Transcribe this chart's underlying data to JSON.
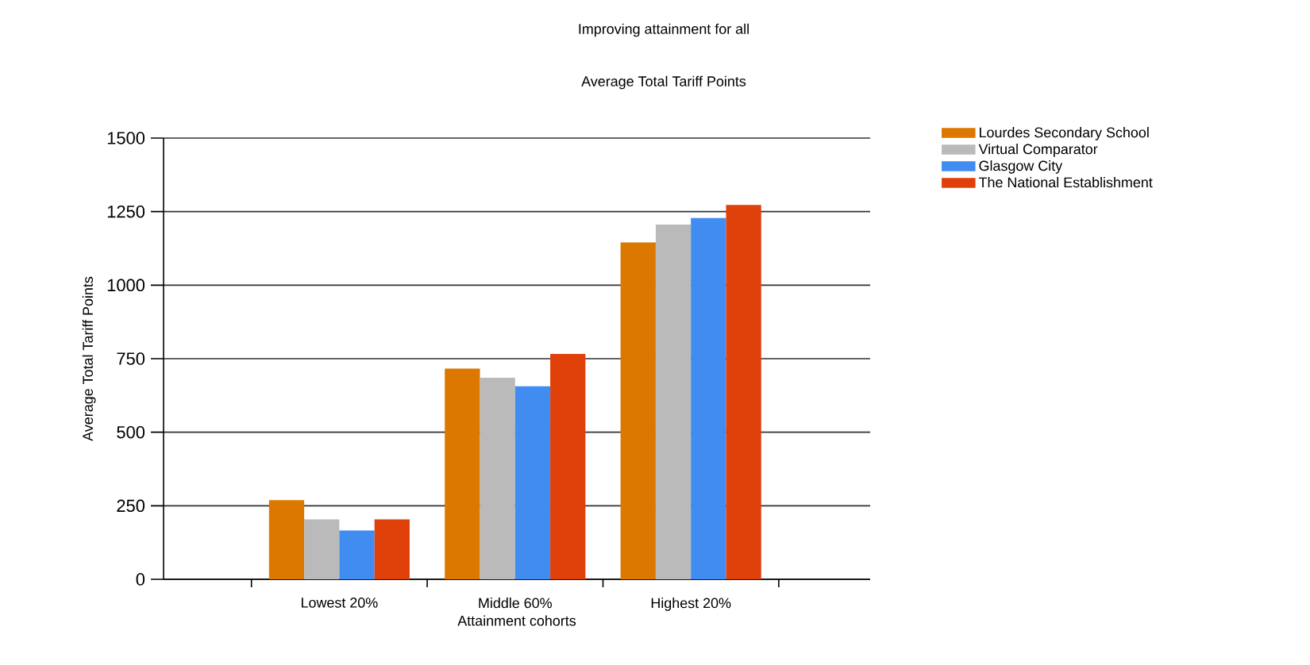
{
  "chart_data": {
    "type": "bar",
    "title": "Improving attainment for all",
    "subtitle": "Average Total Tariff Points",
    "xlabel": "Attainment cohorts",
    "ylabel": "Average Total Tariff Points",
    "categories": [
      "Lowest 20%",
      "Middle 60%",
      "Highest 20%"
    ],
    "series": [
      {
        "name": "Lourdes Secondary School",
        "color": "#dc7700",
        "values": [
          269,
          716,
          1145
        ]
      },
      {
        "name": "Virtual Comparator",
        "color": "#bababa",
        "values": [
          204,
          685,
          1206
        ]
      },
      {
        "name": "Glasgow City",
        "color": "#418cf0",
        "values": [
          166,
          656,
          1228
        ]
      },
      {
        "name": "The National Establishment",
        "color": "#e0400a",
        "values": [
          204,
          766,
          1273
        ]
      }
    ],
    "ylim": [
      0,
      1500
    ],
    "yticks": [
      0,
      250,
      500,
      750,
      1000,
      1250,
      1500
    ],
    "grid": "y",
    "legend": "top right"
  }
}
